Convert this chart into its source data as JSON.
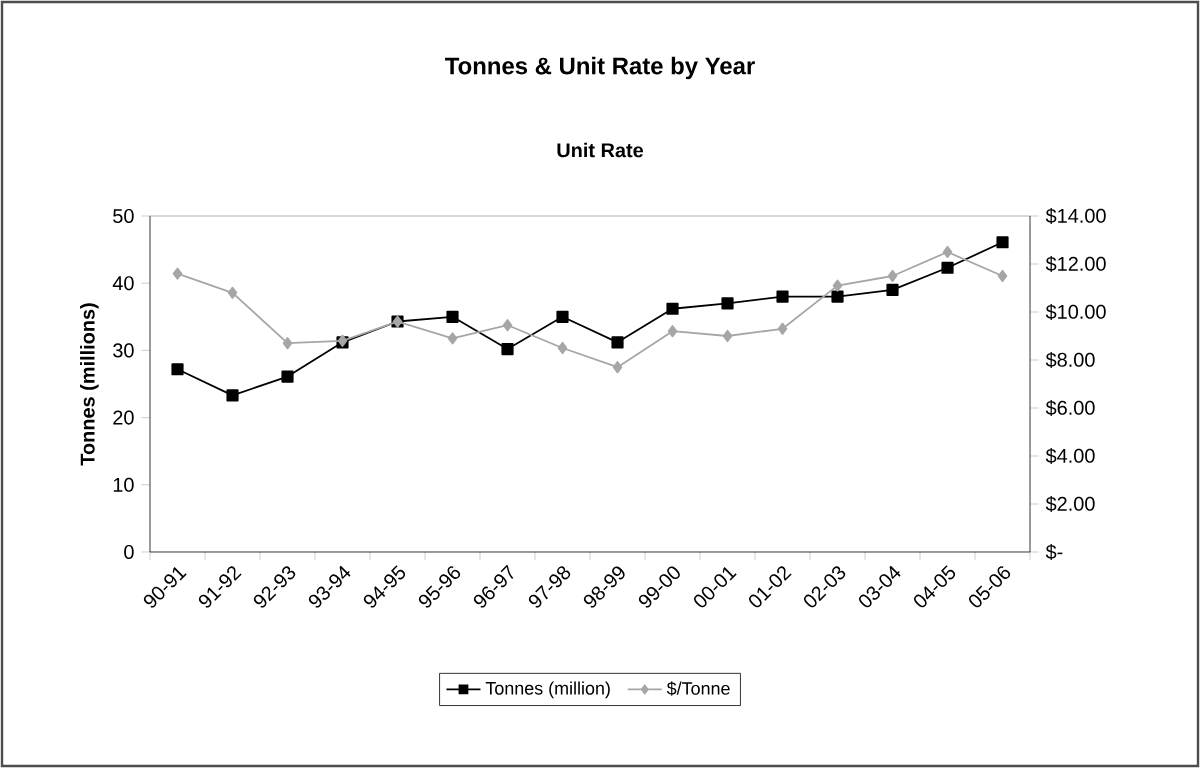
{
  "chart_data": {
    "type": "line",
    "title": "Tonnes & Unit Rate by Year",
    "subtitle": "Unit Rate",
    "ylabel": "Tonnes (millions)",
    "categories": [
      "90-91",
      "91-92",
      "92-93",
      "93-94",
      "94-95",
      "95-96",
      "96-97",
      "97-98",
      "98-99",
      "99-00",
      "00-01",
      "01-02",
      "02-03",
      "03-04",
      "04-05",
      "05-06"
    ],
    "series": [
      {
        "name": "Tonnes (million)",
        "color": "#000000",
        "marker": "square",
        "values": [
          27.2,
          23.3,
          26.1,
          31.2,
          34.3,
          35.0,
          30.2,
          35.0,
          31.2,
          36.2,
          37.0,
          38.0,
          38.0,
          39.0,
          42.3,
          46.1
        ]
      },
      {
        "name": "$/Tonne",
        "color": "#a6a6a6",
        "marker": "diamond",
        "axis": "y2",
        "values": [
          11.6,
          10.8,
          8.7,
          8.8,
          9.6,
          8.9,
          9.45,
          8.5,
          7.7,
          9.2,
          9.0,
          9.3,
          11.1,
          11.5,
          12.5,
          11.5
        ]
      }
    ],
    "ylim": [
      0,
      50
    ],
    "yticks": [
      0,
      10,
      20,
      30,
      40,
      50
    ],
    "y2lim": [
      0,
      14
    ],
    "y2ticks": [
      {
        "value": 0,
        "label": "$-"
      },
      {
        "value": 2,
        "label": "$2.00"
      },
      {
        "value": 4,
        "label": "$4.00"
      },
      {
        "value": 6,
        "label": "$6.00"
      },
      {
        "value": 8,
        "label": "$8.00"
      },
      {
        "value": 10,
        "label": "$10.00"
      },
      {
        "value": 12,
        "label": "$12.00"
      },
      {
        "value": 14,
        "label": "$14.00"
      }
    ],
    "legend": "bottom",
    "grid": false
  }
}
